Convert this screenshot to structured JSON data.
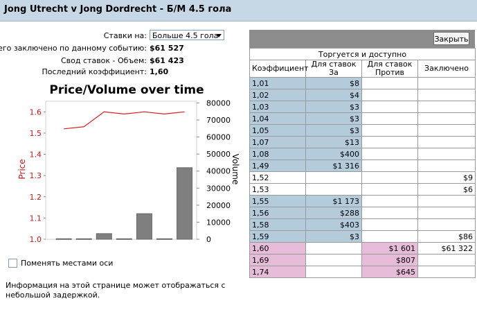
{
  "header": {
    "title": "Jong Utrecht v Jong Dordrecht - Б/М 4.5 гола"
  },
  "info": {
    "bets_on_label": "Ставки на:",
    "bets_on_value": "Больше 4.5 гола",
    "total_label": "Всего заключено по данному событию:",
    "total_value": "$61 527",
    "volume_label": "Свод ставок - Объем:",
    "volume_value": "$61 423",
    "last_odds_label": "Последний коэффициент:",
    "last_odds_value": "1,60"
  },
  "chart_data": {
    "type": "bar",
    "title": "Price/Volume over time",
    "ylabel_left": "Price",
    "ylabel_right": "Volume",
    "left_ticks": [
      "1.0",
      "1.1",
      "1.2",
      "1.3",
      "1.4",
      "1.5",
      "1.6"
    ],
    "right_ticks": [
      "0",
      "10000",
      "20000",
      "30000",
      "40000",
      "50000",
      "60000",
      "70000",
      "80000"
    ],
    "ylim_left": [
      1.0,
      1.65
    ],
    "ylim_right": [
      0,
      81000
    ],
    "volume": [
      300,
      300,
      3300,
      300,
      15000,
      300,
      42000
    ],
    "price": [
      1.52,
      1.53,
      1.6,
      1.59,
      1.6,
      1.59,
      1.6
    ],
    "colors": {
      "price": "#d62020",
      "volume": "#7f7f7f",
      "left_axis_label": "#c01818"
    }
  },
  "swap_axes_label": "Поменять местами оси",
  "notice": "Информация на этой странице может отображаться с небольшой задержкой.",
  "panel": {
    "close_label": "Закрыть"
  },
  "book": {
    "subheader": "Торгуется и доступно",
    "columns": [
      "Коэффициент",
      "Для ставок За",
      "Для ставок Против",
      "Заключено"
    ],
    "rows": [
      {
        "odds": "1,01",
        "for": "$8",
        "against": "",
        "matched": "",
        "style": "blue"
      },
      {
        "odds": "1,02",
        "for": "$4",
        "against": "",
        "matched": "",
        "style": "blue"
      },
      {
        "odds": "1,03",
        "for": "$3",
        "against": "",
        "matched": "",
        "style": "blue"
      },
      {
        "odds": "1,04",
        "for": "$3",
        "against": "",
        "matched": "",
        "style": "blue"
      },
      {
        "odds": "1,05",
        "for": "$3",
        "against": "",
        "matched": "",
        "style": "blue"
      },
      {
        "odds": "1,07",
        "for": "$13",
        "against": "",
        "matched": "",
        "style": "blue"
      },
      {
        "odds": "1,08",
        "for": "$400",
        "against": "",
        "matched": "",
        "style": "blue"
      },
      {
        "odds": "1,49",
        "for": "$1 316",
        "against": "",
        "matched": "",
        "style": "blue"
      },
      {
        "odds": "1,52",
        "for": "",
        "against": "",
        "matched": "$9",
        "style": "none"
      },
      {
        "odds": "1,53",
        "for": "",
        "against": "",
        "matched": "$6",
        "style": "none"
      },
      {
        "odds": "1,55",
        "for": "$1 173",
        "against": "",
        "matched": "",
        "style": "blue"
      },
      {
        "odds": "1,56",
        "for": "$288",
        "against": "",
        "matched": "",
        "style": "blue"
      },
      {
        "odds": "1,58",
        "for": "$403",
        "against": "",
        "matched": "",
        "style": "blue"
      },
      {
        "odds": "1,59",
        "for": "$3",
        "against": "",
        "matched": "$86",
        "style": "blue"
      },
      {
        "odds": "1,60",
        "for": "",
        "against": "$1 601",
        "matched": "$61 322",
        "style": "pink"
      },
      {
        "odds": "1,69",
        "for": "",
        "against": "$807",
        "matched": "",
        "style": "pink"
      },
      {
        "odds": "1,74",
        "for": "",
        "against": "$645",
        "matched": "",
        "style": "pink"
      }
    ]
  }
}
